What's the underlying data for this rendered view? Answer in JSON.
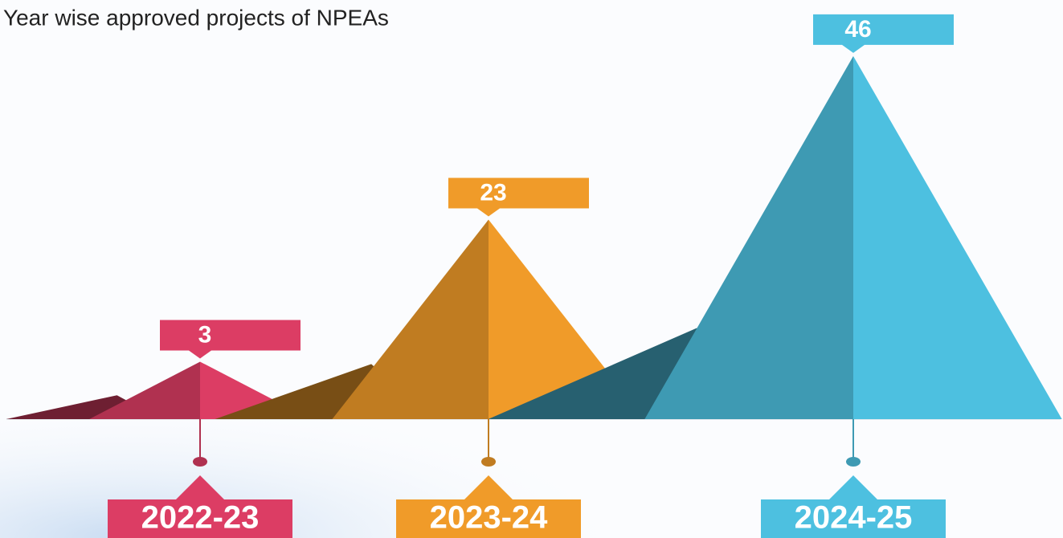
{
  "chart_data": {
    "type": "pyramid",
    "title": "Year wise approved projects of NPEAs",
    "categories": [
      "2022-23",
      "2023-24",
      "2024-25"
    ],
    "values": [
      3,
      23,
      46
    ],
    "colors": [
      "#dc3d64",
      "#f09b29",
      "#4dc0e0"
    ]
  }
}
